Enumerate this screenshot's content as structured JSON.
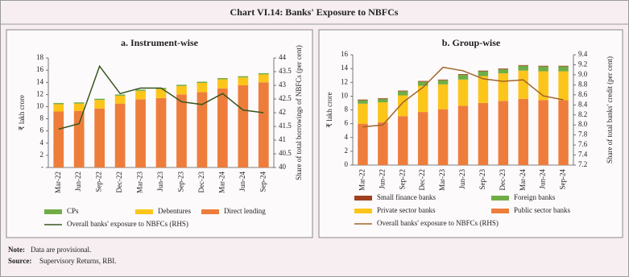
{
  "header": {
    "title": "Chart VI.14: Banks' Exposure to NBFCs"
  },
  "chart_data": [
    {
      "type": "bar",
      "stacked": true,
      "title": "a. Instrument-wise",
      "y_label": "₹ lakh crore",
      "y2_label": "Share of total borrowings of NBFCs (per cent)",
      "categories": [
        "Mar-22",
        "Jun-22",
        "Sep-22",
        "Dec-22",
        "Mar-23",
        "Jun-23",
        "Sep-23",
        "Dec-23",
        "Mar-24",
        "Jun-24",
        "Sep-24"
      ],
      "ylim": [
        0,
        18
      ],
      "yticks": [
        {
          "value": 0,
          "label": "-"
        },
        2,
        4,
        6,
        8,
        10,
        12,
        14,
        16,
        18
      ],
      "y2lim": [
        40,
        44
      ],
      "y2ticks": [
        40,
        40.5,
        41,
        41.5,
        42,
        42.5,
        43,
        43.5,
        44
      ],
      "series": [
        {
          "name": "Direct lending",
          "color": "#ee7d3b",
          "values": [
            9.2,
            9.3,
            9.7,
            10.5,
            11.2,
            11.4,
            12.0,
            12.4,
            13.0,
            13.5,
            14.0
          ]
        },
        {
          "name": "Debentures",
          "color": "#fcc51a",
          "values": [
            1.2,
            1.2,
            1.4,
            1.3,
            1.4,
            1.5,
            1.4,
            1.5,
            1.5,
            1.3,
            1.3
          ]
        },
        {
          "name": "CPs",
          "color": "#70ad47",
          "values": [
            0.2,
            0.2,
            0.2,
            0.2,
            0.2,
            0.2,
            0.2,
            0.2,
            0.2,
            0.2,
            0.2
          ]
        },
        {
          "name": "Overall banks' exposure to NBFCs (RHS)",
          "type": "line",
          "axis": "y2",
          "color": "#375623",
          "values": [
            41.4,
            41.6,
            43.7,
            42.7,
            42.9,
            42.9,
            42.4,
            42.3,
            42.7,
            42.1,
            42.0
          ]
        }
      ]
    },
    {
      "type": "bar",
      "stacked": true,
      "title": "b. Group-wise",
      "y_label": "₹ lakh crore",
      "y2_label": "Share of total banks' credit (per cent)",
      "categories": [
        "Mar-22",
        "Jun-22",
        "Sep-22",
        "Dec-22",
        "Mar-23",
        "Jun-23",
        "Sep-23",
        "Dec-23",
        "Mar-24",
        "Jun-24",
        "Sep-24"
      ],
      "ylim": [
        0,
        16
      ],
      "yticks": [
        0,
        2,
        4,
        6,
        8,
        10,
        12,
        14,
        16
      ],
      "y2lim": [
        7.2,
        9.4
      ],
      "y2ticks": [
        7.2,
        7.4,
        7.6,
        7.8,
        {
          "value": 8,
          "label": "8.0"
        },
        8.2,
        8.4,
        8.6,
        8.8,
        {
          "value": 9,
          "label": "9.0"
        },
        9.2,
        9.4
      ],
      "series": [
        {
          "name": "Public sector banks",
          "color": "#ee7d3b",
          "values": [
            6.0,
            6.2,
            7.1,
            7.7,
            8.1,
            8.6,
            9.0,
            9.3,
            9.6,
            9.4,
            9.4
          ]
        },
        {
          "name": "Private sector banks",
          "color": "#fcc51a",
          "values": [
            2.9,
            2.9,
            3.0,
            3.8,
            3.6,
            3.8,
            3.9,
            4.0,
            4.1,
            4.2,
            4.2
          ]
        },
        {
          "name": "Foreign banks",
          "color": "#70ad47",
          "values": [
            0.5,
            0.5,
            0.6,
            0.6,
            0.6,
            0.7,
            0.7,
            0.6,
            0.7,
            0.7,
            0.7
          ]
        },
        {
          "name": "Small finance banks",
          "color": "#a0401f",
          "values": [
            0.1,
            0.1,
            0.1,
            0.1,
            0.1,
            0.1,
            0.1,
            0.1,
            0.1,
            0.1,
            0.1
          ]
        },
        {
          "name": "Overall banks' exposure to NBFCs (RHS)",
          "type": "line",
          "axis": "y2",
          "color": "#a0632a",
          "values": [
            7.96,
            8.0,
            8.45,
            8.75,
            9.15,
            9.08,
            8.92,
            8.87,
            8.9,
            8.58,
            8.5
          ]
        }
      ]
    }
  ],
  "notes": [
    {
      "label": "Note:",
      "text": "Data are provisional."
    },
    {
      "label": "Source:",
      "text": "Supervisory Returns, RBI."
    }
  ]
}
